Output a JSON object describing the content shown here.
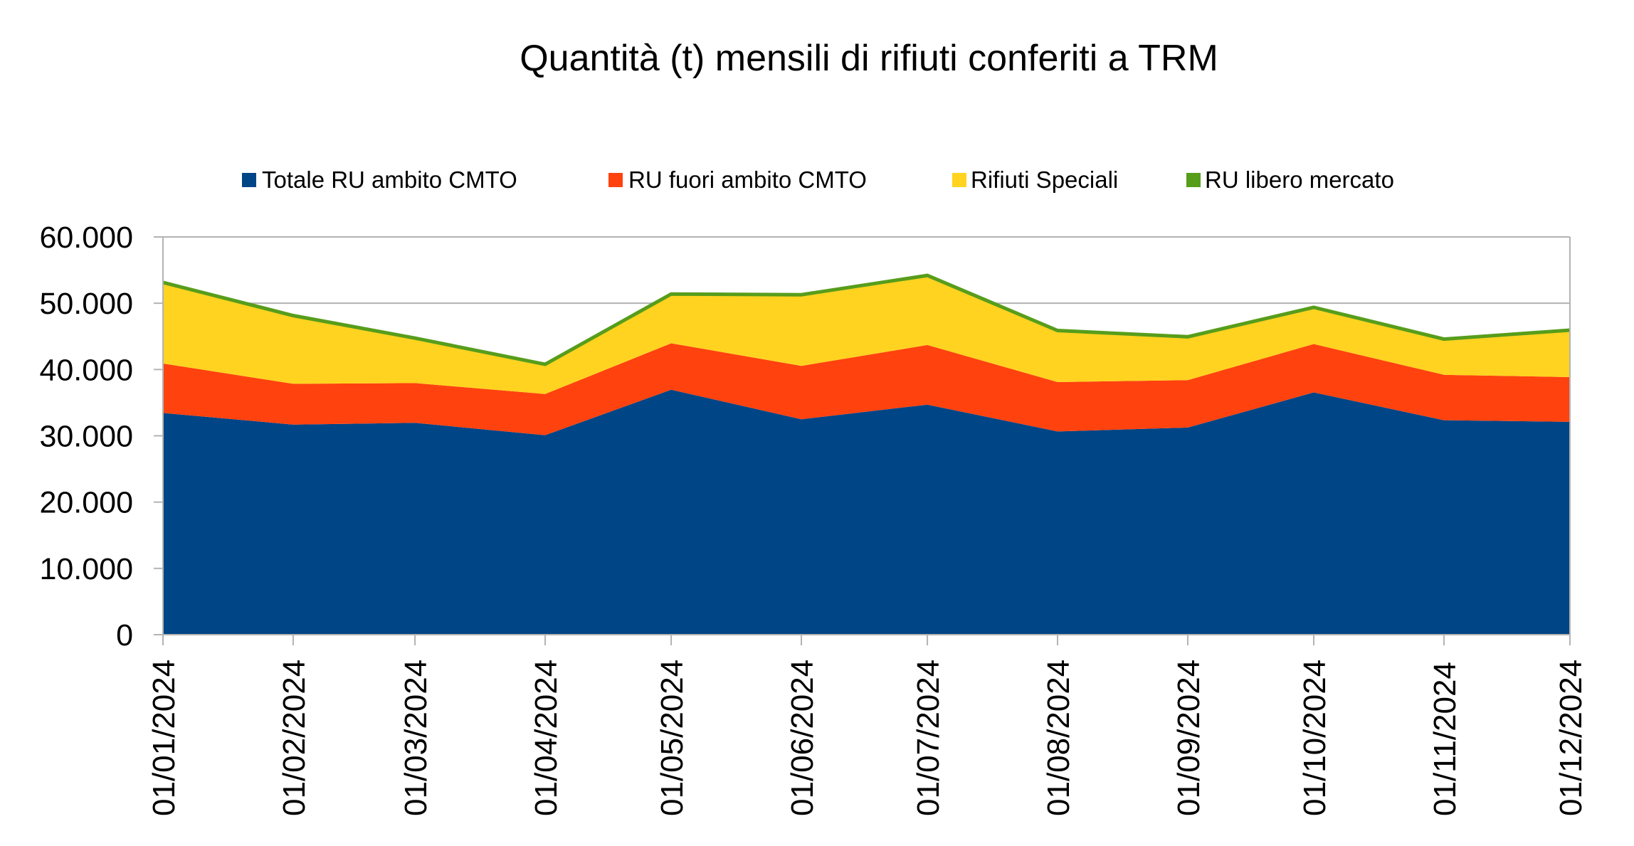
{
  "chart_data": {
    "type": "area",
    "stacked": true,
    "title": "Quantità (t) mensili di rifiuti conferiti a TRM",
    "xlabel": "",
    "ylabel": "",
    "x_scale": "date",
    "x": [
      "01/01/2024",
      "01/02/2024",
      "01/03/2024",
      "01/04/2024",
      "01/05/2024",
      "01/06/2024",
      "01/07/2024",
      "01/08/2024",
      "01/09/2024",
      "01/10/2024",
      "01/11/2024",
      "01/12/2024"
    ],
    "x_day_of_year": [
      0,
      31,
      60,
      91,
      121,
      152,
      182,
      213,
      244,
      274,
      305,
      335
    ],
    "ylim": [
      0,
      60000
    ],
    "y_ticks": [
      0,
      10000,
      20000,
      30000,
      40000,
      50000,
      60000
    ],
    "y_tick_labels": [
      "0",
      "10.000",
      "20.000",
      "30.000",
      "40.000",
      "50.000",
      "60.000"
    ],
    "grid": true,
    "legend_position": "top",
    "series": [
      {
        "name": "Totale RU ambito CMTO",
        "color": "#004586",
        "values": [
          33450,
          31700,
          31950,
          30100,
          36950,
          32500,
          34700,
          30650,
          31250,
          36550,
          32350,
          32100
        ]
      },
      {
        "name": "RU fuori ambito CMTO",
        "color": "#ff420e",
        "values": [
          7450,
          6150,
          6000,
          6200,
          7000,
          8050,
          9000,
          7450,
          7150,
          7300,
          6850,
          6750
        ]
      },
      {
        "name": "Rifiuti Speciali",
        "color": "#ffd320",
        "values": [
          12100,
          10150,
          6650,
          4350,
          7300,
          10600,
          10350,
          7650,
          6400,
          5400,
          5250,
          6950
        ]
      },
      {
        "name": "RU libero mercato",
        "color": "#579d1c",
        "values": [
          300,
          300,
          300,
          300,
          300,
          300,
          300,
          300,
          300,
          300,
          300,
          300
        ]
      }
    ]
  }
}
